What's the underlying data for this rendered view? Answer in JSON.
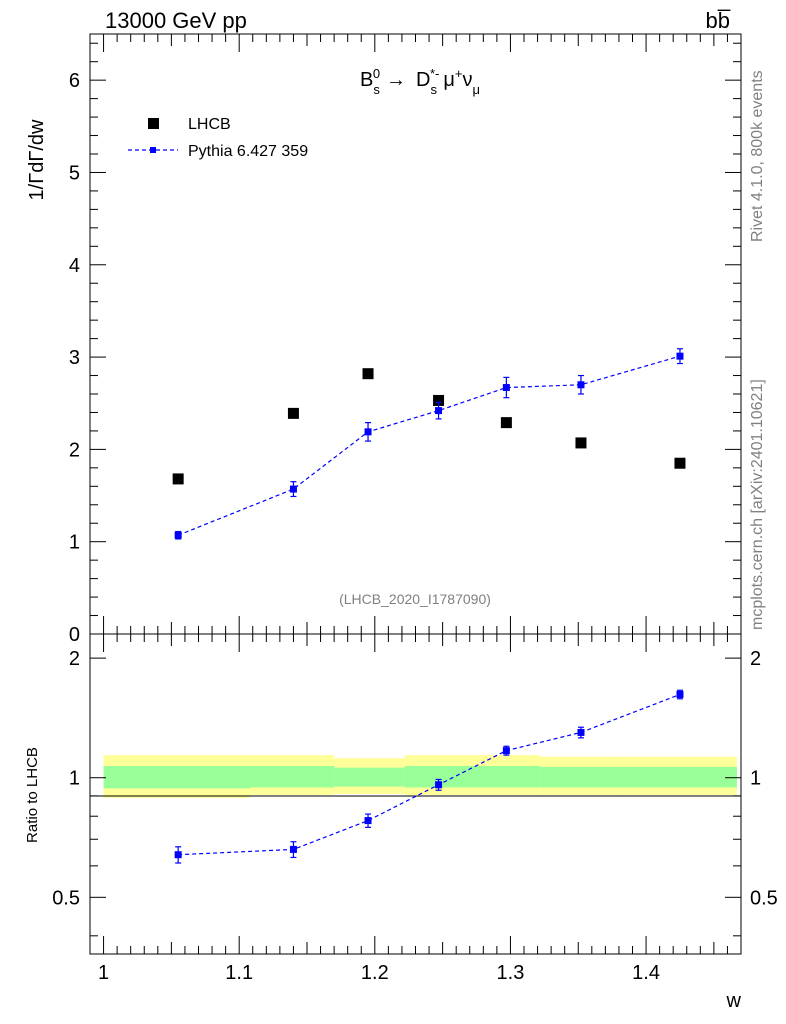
{
  "header": {
    "energy_label": "13000 GeV pp",
    "process_label": "bb̅"
  },
  "side_labels": {
    "rivet": "Rivet 4.1.0,  800k events",
    "mcplots": "mcplots.cern.ch [arXiv:2401.10621]"
  },
  "chart_data": [
    {
      "type": "scatter",
      "panel": "main",
      "title": {
        "parts": [
          "B",
          "s",
          "0",
          "→",
          "D",
          "s",
          "*-",
          "μ",
          "+",
          "ν",
          "μ"
        ]
      },
      "ylabel": "1/ΓdΓ/dw",
      "xlabel": "w",
      "xlim": [
        0.99,
        1.47
      ],
      "ylim": [
        0,
        6.5
      ],
      "yticks": [
        0,
        1,
        2,
        3,
        4,
        5,
        6
      ],
      "ytick_labels": [
        "0",
        "1",
        "2",
        "3",
        "4",
        "5",
        "6"
      ],
      "watermark": "(LHCB_2020_I1787090)",
      "legend": {
        "position": "top-left",
        "entries": [
          "LHCB",
          "Pythia 6.427 359"
        ]
      },
      "series": [
        {
          "name": "LHCB",
          "color": "#000000",
          "marker": "square",
          "x": [
            1.055,
            1.14,
            1.195,
            1.247,
            1.297,
            1.352,
            1.425
          ],
          "y": [
            1.68,
            2.39,
            2.82,
            2.53,
            2.29,
            2.07,
            1.85
          ]
        },
        {
          "name": "Pythia 6.427 359",
          "color": "#0000ff",
          "marker": "square-dashed-line",
          "x": [
            1.055,
            1.14,
            1.195,
            1.247,
            1.297,
            1.352,
            1.425
          ],
          "y": [
            1.07,
            1.57,
            2.19,
            2.42,
            2.67,
            2.7,
            3.01
          ],
          "yerr": [
            0.04,
            0.08,
            0.1,
            0.09,
            0.11,
            0.1,
            0.08
          ]
        }
      ]
    },
    {
      "type": "scatter",
      "panel": "ratio",
      "ylabel": "Ratio to LHCB",
      "xlabel": "w",
      "xlim": [
        0.99,
        1.47
      ],
      "ylim": [
        0.36,
        2.3
      ],
      "yscale": "log",
      "yticks": [
        0.5,
        1,
        2
      ],
      "ytick_labels": [
        "0.5",
        "1",
        "2"
      ],
      "xticks": [
        1,
        1.1,
        1.2,
        1.3,
        1.4
      ],
      "xtick_labels": [
        "1",
        "1.1",
        "1.2",
        "1.3",
        "1.4"
      ],
      "bands": {
        "bin_edges": [
          1.0,
          1.108,
          1.17,
          1.222,
          1.272,
          1.322,
          1.382,
          1.467
        ],
        "outer_lo": [
          0.89,
          0.905,
          0.91,
          0.905,
          0.905,
          0.905,
          0.905
        ],
        "outer_hi": [
          1.14,
          1.14,
          1.12,
          1.14,
          1.14,
          1.13,
          1.13
        ],
        "inner_lo": [
          0.94,
          0.945,
          0.95,
          0.945,
          0.945,
          0.945,
          0.945
        ],
        "inner_hi": [
          1.07,
          1.07,
          1.06,
          1.07,
          1.07,
          1.065,
          1.065
        ],
        "outer_color": "#ffff99",
        "inner_color": "#99ff99"
      },
      "series": [
        {
          "name": "Pythia 6.427 359",
          "color": "#0000ff",
          "x": [
            1.055,
            1.14,
            1.195,
            1.247,
            1.297,
            1.352,
            1.425
          ],
          "y": [
            0.64,
            0.66,
            0.78,
            0.96,
            1.17,
            1.3,
            1.62
          ],
          "yerr": [
            0.03,
            0.03,
            0.03,
            0.03,
            0.03,
            0.04,
            0.04
          ]
        }
      ]
    }
  ]
}
